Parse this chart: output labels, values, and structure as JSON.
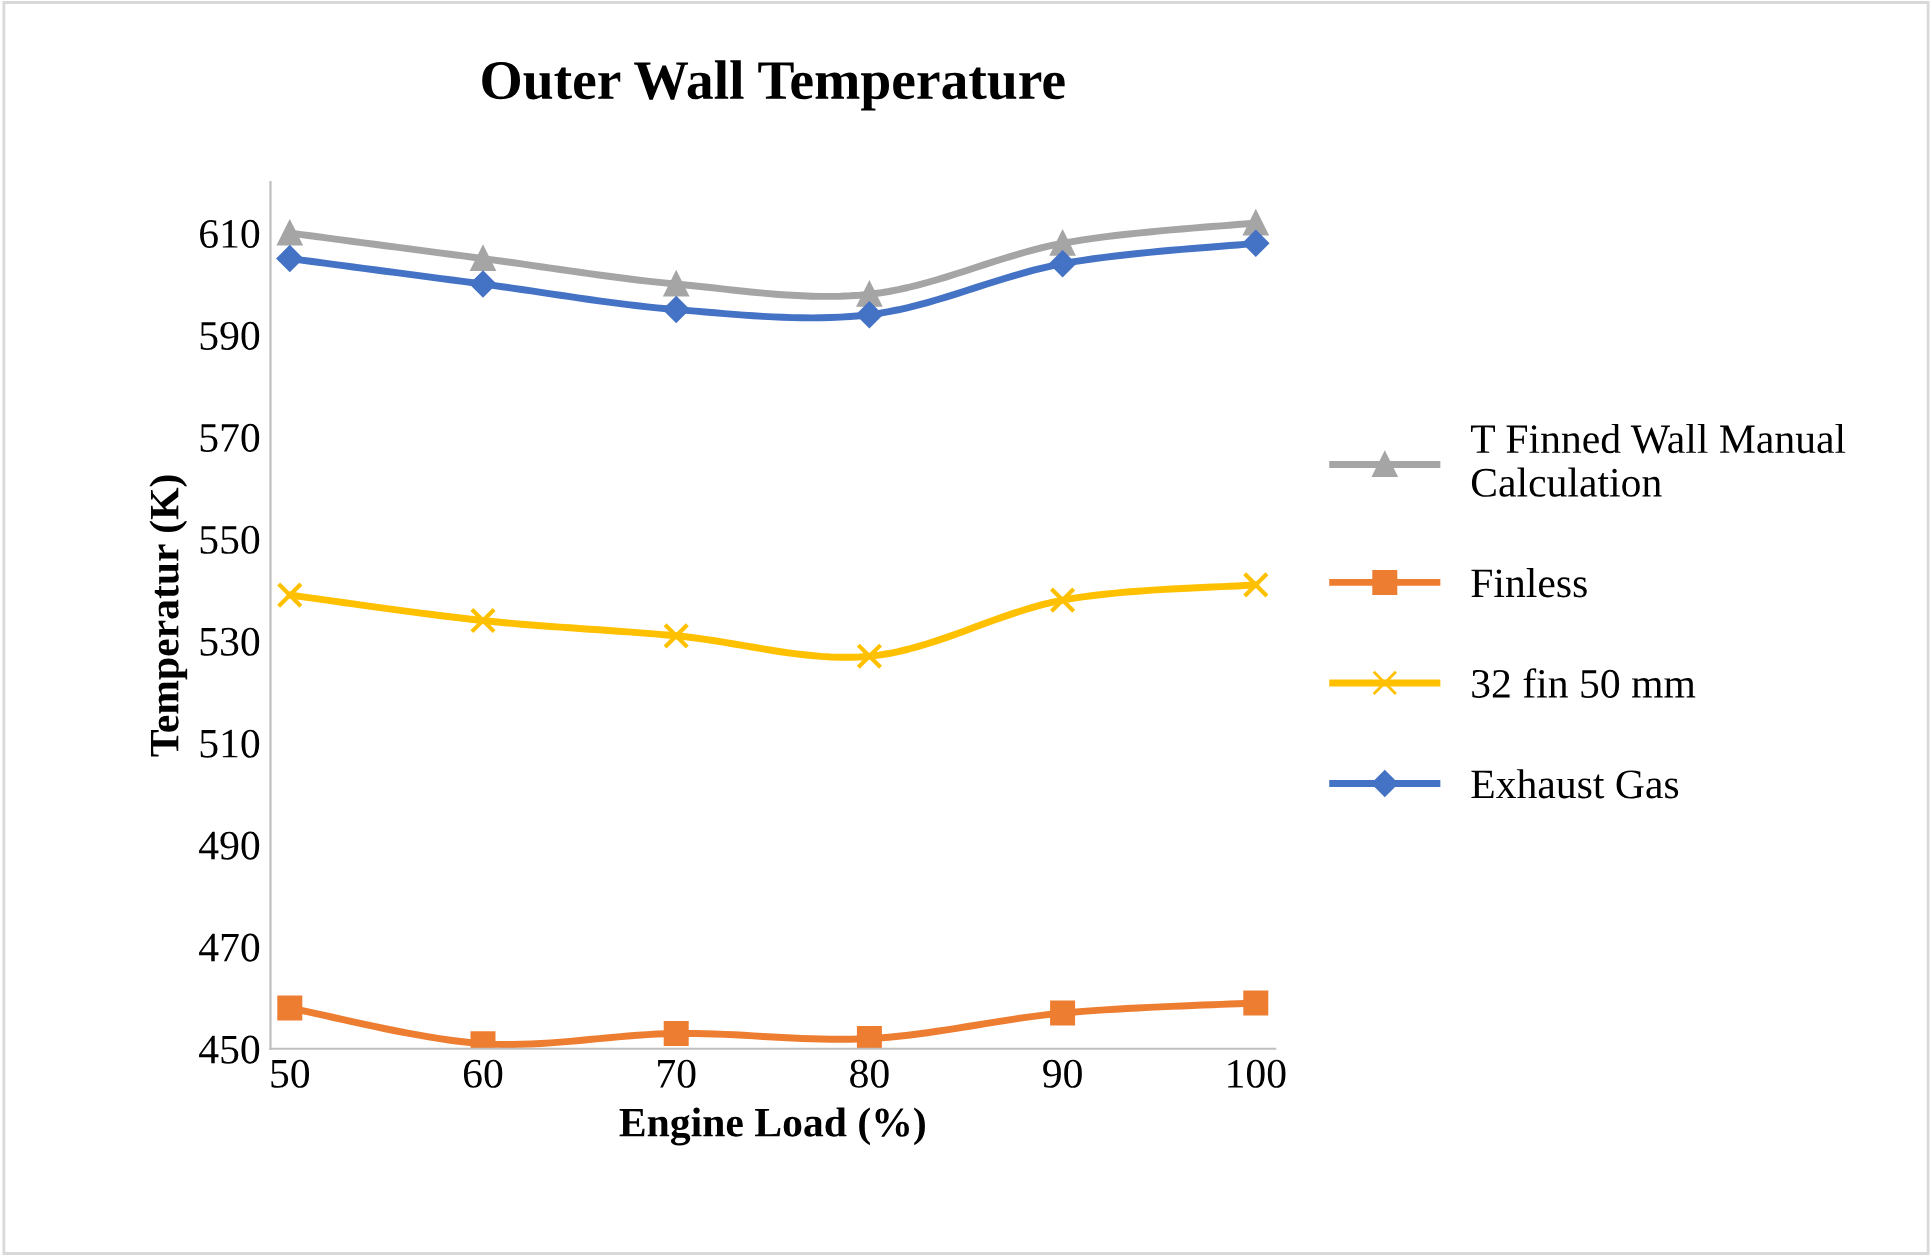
{
  "chart_data": {
    "type": "line",
    "title": "Outer Wall Temperature",
    "xlabel": "Engine Load (%)",
    "ylabel": "Temperatur (K)",
    "categories": [
      "50",
      "60",
      "70",
      "80",
      "90",
      "100"
    ],
    "series": [
      {
        "name": "T Finned Wall Manual Calculation",
        "color": "#a5a5a5",
        "marker": "triangle",
        "values": [
          610,
          605,
          600,
          598,
          608,
          612
        ]
      },
      {
        "name": "Finless",
        "color": "#ed7d31",
        "marker": "square",
        "values": [
          458,
          451,
          453,
          452,
          457,
          459
        ]
      },
      {
        "name": "32 fin 50 mm",
        "color": "#ffc000",
        "marker": "cross",
        "values": [
          539,
          534,
          531,
          527,
          538,
          541
        ]
      },
      {
        "name": "Exhaust Gas",
        "color": "#4472c4",
        "marker": "diamond",
        "values": [
          605,
          600,
          595,
          594,
          604,
          608
        ]
      }
    ],
    "ylim": [
      450,
      620
    ],
    "yticks": [
      450,
      470,
      490,
      510,
      530,
      550,
      570,
      590,
      610
    ],
    "grid": false,
    "legend": "right",
    "line_style": "solid"
  }
}
